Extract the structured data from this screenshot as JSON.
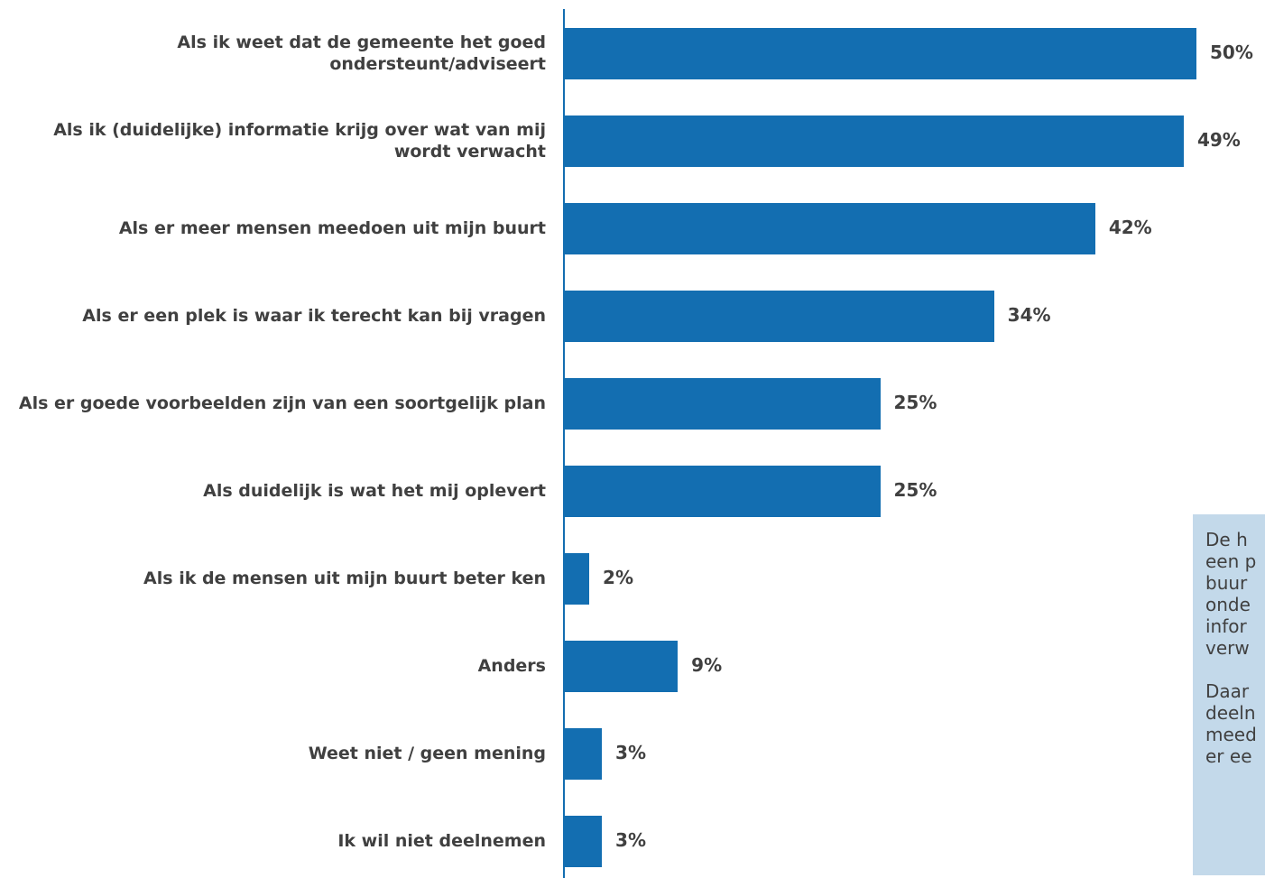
{
  "chart_data": {
    "type": "bar",
    "orientation": "horizontal",
    "categories": [
      "Als ik weet dat de gemeente het goed ondersteunt/adviseert",
      "Als ik (duidelijke) informatie krijg over wat van mij wordt verwacht",
      "Als er meer mensen meedoen uit mijn buurt",
      "Als er een plek is waar ik terecht kan bij vragen",
      "Als er goede voorbeelden zijn van een soortgelijk plan",
      "Als duidelijk is wat het mij oplevert",
      "Als ik de mensen uit mijn buurt beter ken",
      "Anders",
      "Weet niet / geen mening",
      "Ik wil niet deelnemen"
    ],
    "values": [
      50,
      49,
      42,
      34,
      25,
      25,
      2,
      9,
      3,
      3
    ],
    "value_labels": [
      "50%",
      "49%",
      "42%",
      "34%",
      "25%",
      "25%",
      "2%",
      "9%",
      "3%",
      "3%"
    ],
    "unit": "%",
    "title": "",
    "xlabel": "",
    "ylabel": "",
    "xlim": [
      0,
      50
    ],
    "grid": false,
    "bar_color": "#136eb1",
    "label_color": "#404040"
  },
  "note": {
    "background": "#c3d9ea",
    "paragraphs": [
      [
        "De h",
        "een p",
        "buur",
        "onde",
        "infor",
        "verw"
      ],
      [
        "Daar",
        "deeln",
        "meed",
        "er ee"
      ]
    ]
  }
}
